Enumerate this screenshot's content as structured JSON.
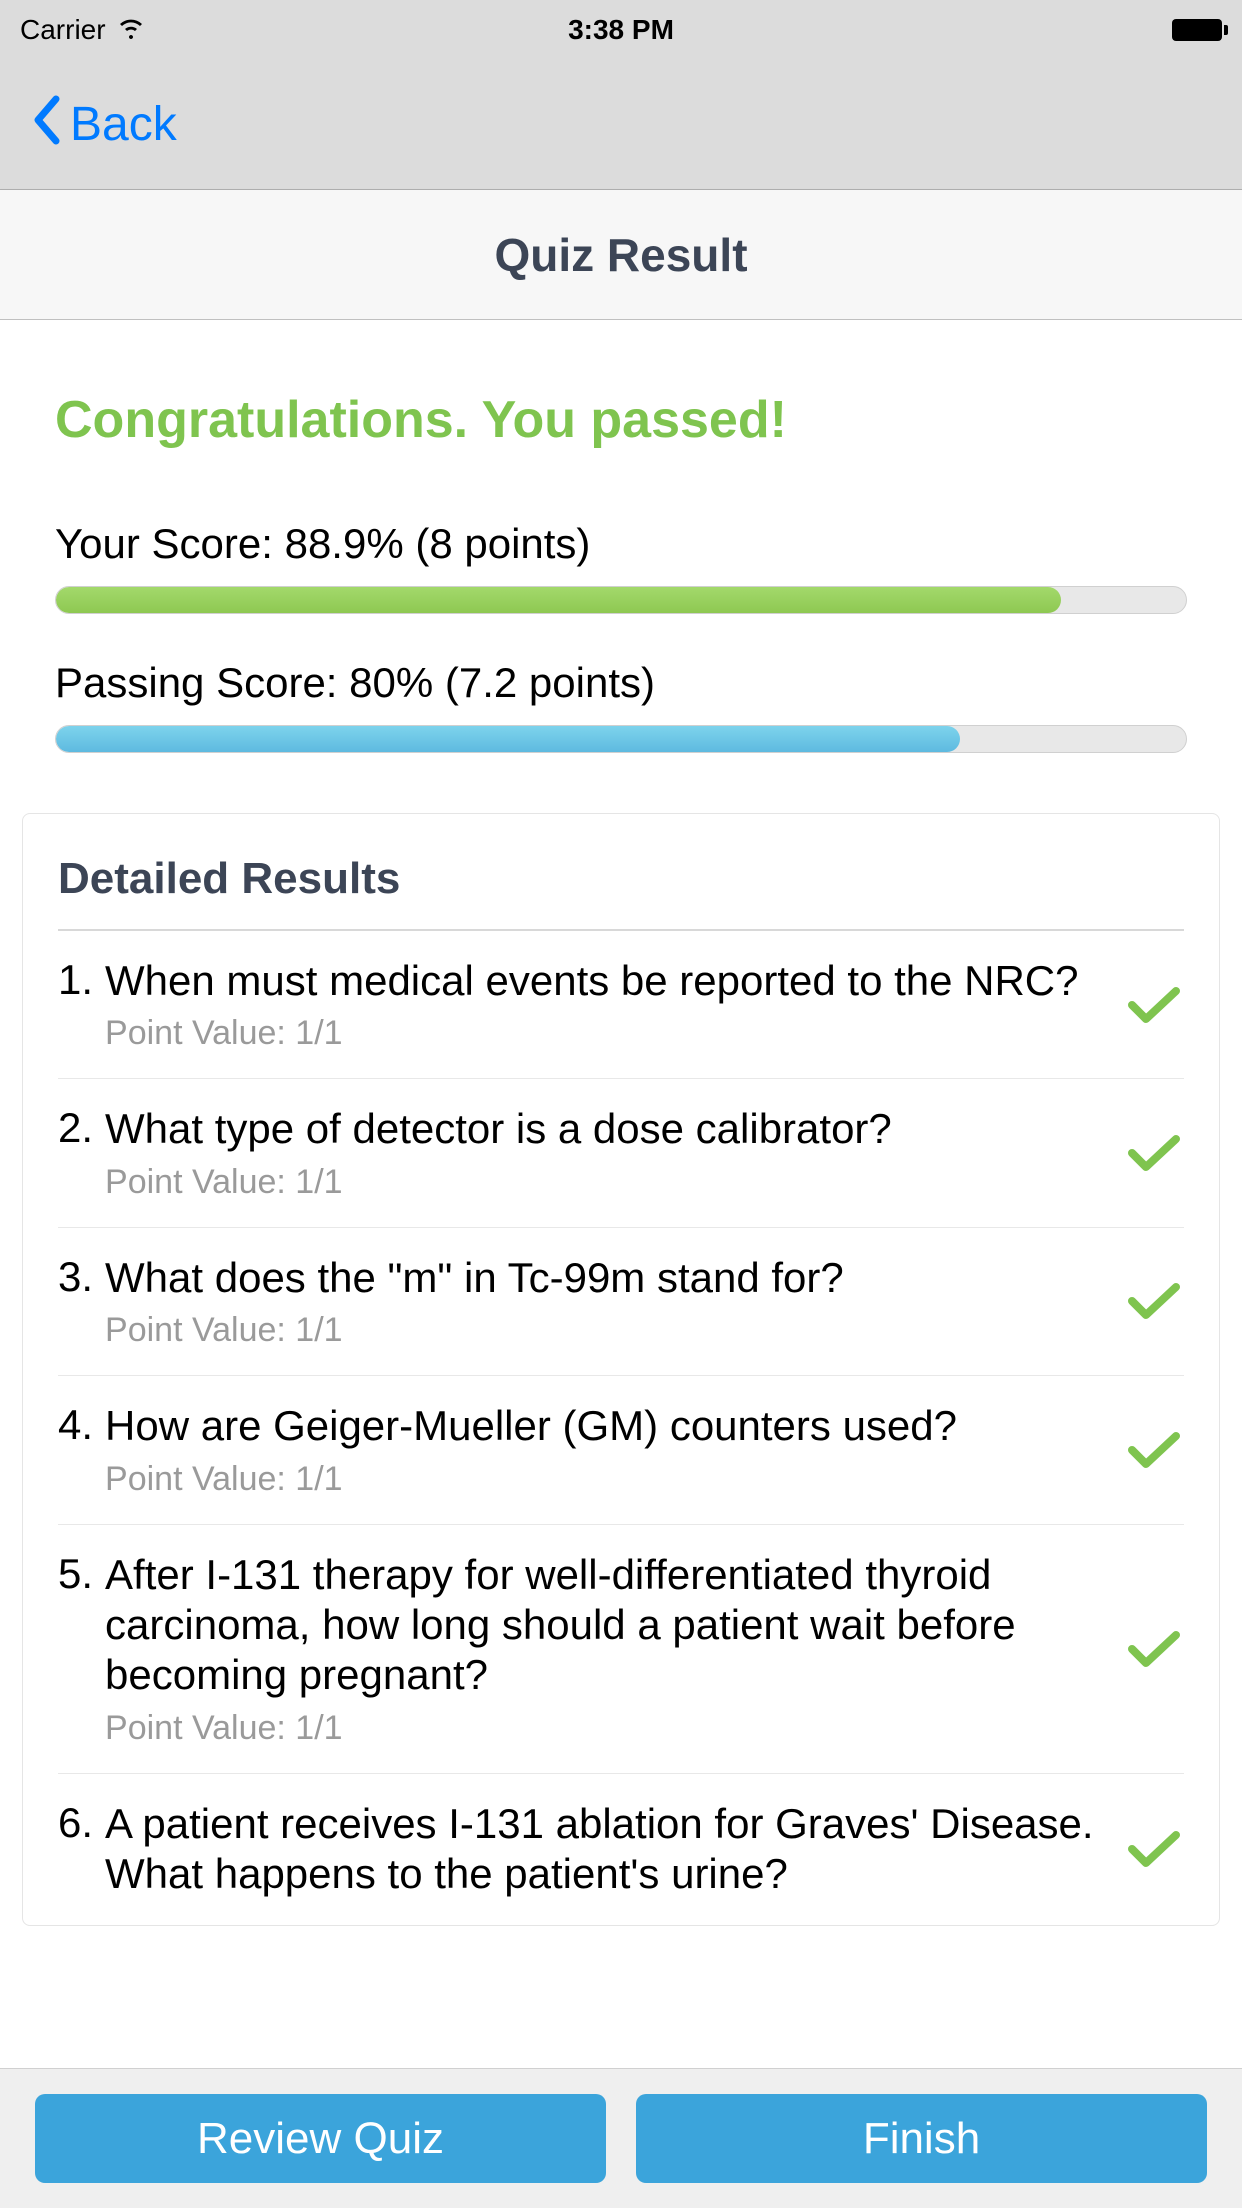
{
  "status_bar": {
    "carrier": "Carrier",
    "time": "3:38 PM"
  },
  "nav": {
    "back_label": "Back"
  },
  "header": {
    "title": "Quiz Result"
  },
  "congrats": {
    "text": "Congratulations. You passed!",
    "color": "#7fc44f"
  },
  "scores": {
    "your_score_label": "Your Score: 88.9% (8 points)",
    "your_score_percent": 88.9,
    "your_score_color": "#8ec852",
    "passing_score_label": "Passing Score: 80% (7.2 points)",
    "passing_score_percent": 80,
    "passing_score_color": "#5ebae0"
  },
  "detailed": {
    "heading": "Detailed Results",
    "items": [
      {
        "num": "1.",
        "question": "When must medical events be reported to the NRC?",
        "points": "Point Value: 1/1",
        "correct": true
      },
      {
        "num": "2.",
        "question": "What type of detector is a dose calibrator?",
        "points": "Point Value: 1/1",
        "correct": true
      },
      {
        "num": "3.",
        "question": "What does the \"m\" in Tc-99m stand for?",
        "points": "Point Value: 1/1",
        "correct": true
      },
      {
        "num": "4.",
        "question": "How are Geiger-Mueller (GM) counters used?",
        "points": "Point Value: 1/1",
        "correct": true
      },
      {
        "num": "5.",
        "question": "After I-131 therapy for well-differentiated thyroid carcinoma, how long should a patient wait before becoming pregnant?",
        "points": "Point Value: 1/1",
        "correct": true
      },
      {
        "num": "6.",
        "question": "A patient receives I-131 ablation for Graves' Disease. What happens to the patient's urine?",
        "points": "",
        "correct": true
      }
    ]
  },
  "buttons": {
    "review": "Review Quiz",
    "finish": "Finish",
    "button_color": "#3ba4db"
  }
}
